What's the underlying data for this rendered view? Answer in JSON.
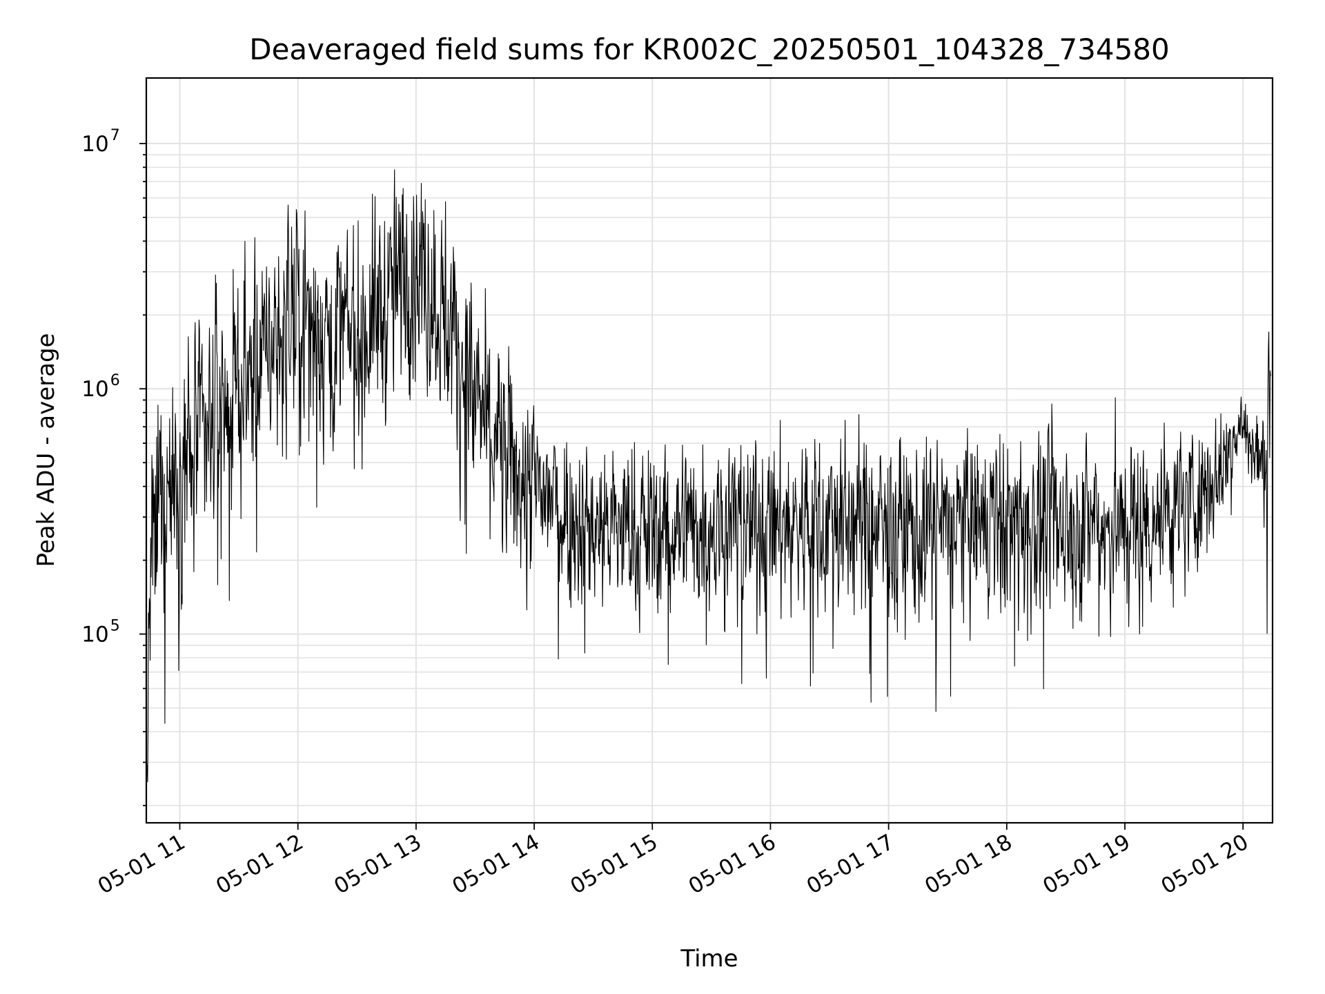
{
  "chart_data": {
    "type": "line",
    "title": "Deaveraged field sums for KR002C_20250501_104328_734580",
    "xlabel": "Time",
    "ylabel": "Peak ADU - average",
    "y_scale": "log",
    "ylim": [
      17000,
      18500000
    ],
    "xlim": [
      "2025-05-01T10:43",
      "2025-05-01T20:15"
    ],
    "x_ticks": [
      "05-01 11",
      "05-01 12",
      "05-01 13",
      "05-01 14",
      "05-01 15",
      "05-01 16",
      "05-01 17",
      "05-01 18",
      "05-01 19",
      "05-01 20"
    ],
    "y_ticks": [
      {
        "base": "10",
        "exp": "5"
      },
      {
        "base": "10",
        "exp": "6"
      },
      {
        "base": "10",
        "exp": "7"
      }
    ],
    "grid": true,
    "line_color": "#000000",
    "series": [
      {
        "x": [
          "2025-05-01T10:43",
          "2025-05-01T10:45",
          "2025-05-01T10:50",
          "2025-05-01T10:55",
          "2025-05-01T11:00",
          "2025-05-01T11:05",
          "2025-05-01T11:15",
          "2025-05-01T11:30",
          "2025-05-01T11:45",
          "2025-05-01T12:00",
          "2025-05-01T12:15",
          "2025-05-01T12:30",
          "2025-05-01T12:45",
          "2025-05-01T13:00",
          "2025-05-01T13:15",
          "2025-05-01T13:30",
          "2025-05-01T13:45",
          "2025-05-01T14:00",
          "2025-05-01T14:30",
          "2025-05-01T15:00",
          "2025-05-01T15:30",
          "2025-05-01T16:00",
          "2025-05-01T16:30",
          "2025-05-01T17:00",
          "2025-05-01T17:30",
          "2025-05-01T18:00",
          "2025-05-01T18:30",
          "2025-05-01T19:00",
          "2025-05-01T19:30",
          "2025-05-01T19:50",
          "2025-05-01T19:55",
          "2025-05-01T20:00",
          "2025-05-01T20:05",
          "2025-05-01T20:10",
          "2025-05-01T20:12",
          "2025-05-01T20:14"
        ],
        "y": [
          20000,
          150000,
          350000,
          450000,
          500000,
          550000,
          700000,
          950000,
          1500000,
          2000000,
          1700000,
          1600000,
          2200000,
          3300000,
          2000000,
          900000,
          500000,
          380000,
          280000,
          260000,
          290000,
          270000,
          290000,
          260000,
          270000,
          280000,
          280000,
          270000,
          330000,
          480000,
          650000,
          700000,
          550000,
          500000,
          700000,
          800000
        ],
        "spread": [
          0.5,
          1.1,
          1.1,
          1.1,
          1.0,
          1.0,
          1.0,
          1.0,
          1.0,
          1.0,
          1.0,
          1.0,
          1.0,
          1.0,
          1.0,
          1.0,
          0.95,
          0.85,
          0.8,
          0.8,
          0.8,
          0.8,
          0.85,
          0.85,
          0.85,
          0.85,
          0.85,
          0.85,
          0.75,
          0.5,
          0.4,
          0.4,
          0.4,
          0.4,
          0.8,
          1.2
        ]
      }
    ]
  }
}
